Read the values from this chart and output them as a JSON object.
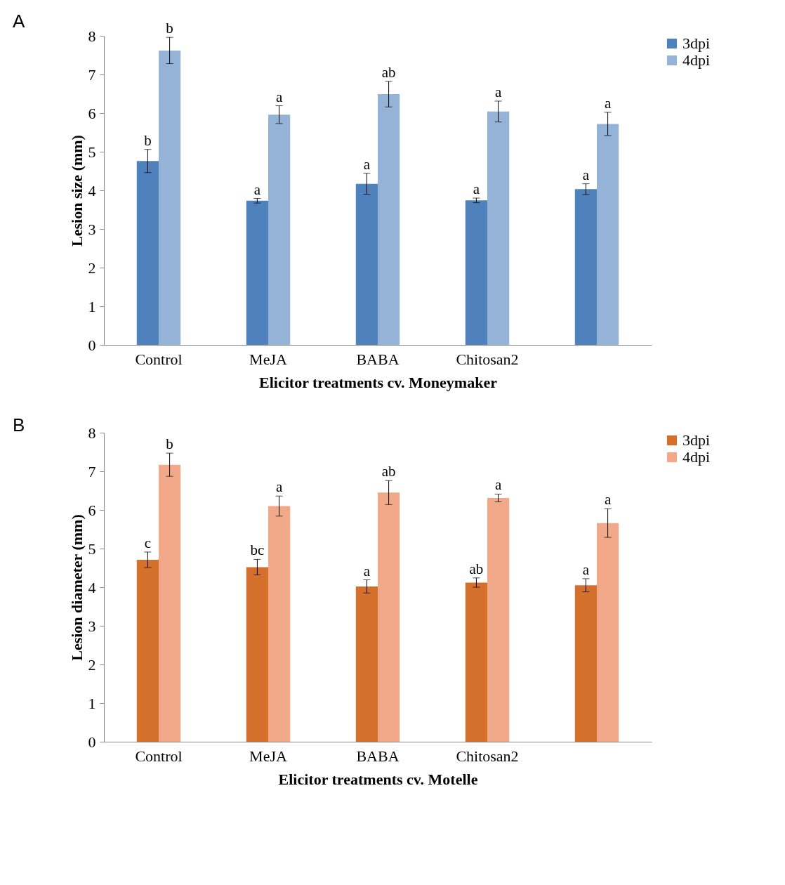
{
  "chart_data": [
    {
      "type": "bar",
      "annotations": [
        "A"
      ],
      "xlabel": "Elicitor treatments  cv. Moneymaker",
      "ylabel": "Lesion size (mm)",
      "categories": [
        "Control",
        "MeJA",
        "BABA",
        "Chitosan2",
        null
      ],
      "ylim": [
        0,
        8
      ],
      "yticks": [
        0,
        1,
        2,
        3,
        4,
        5,
        6,
        7,
        8
      ],
      "legend": "right",
      "grid": false,
      "series": [
        {
          "name": "3dpi",
          "color": "#4f81bd",
          "values": [
            4.76,
            3.73,
            4.17,
            3.74,
            4.03
          ],
          "errors": [
            0.3,
            0.06,
            0.27,
            0.06,
            0.14
          ],
          "value_labels": [
            "b",
            "a",
            "a",
            "a",
            "a"
          ]
        },
        {
          "name": "4dpi",
          "color": "#95b3d7",
          "values": [
            7.62,
            5.96,
            6.49,
            6.04,
            5.72
          ],
          "errors": [
            0.34,
            0.23,
            0.33,
            0.27,
            0.3
          ],
          "value_labels": [
            "b",
            "a",
            "ab",
            "a",
            "a"
          ]
        }
      ]
    },
    {
      "type": "bar",
      "annotations": [
        "B"
      ],
      "xlabel": "Elicitor treatments cv.  Motelle",
      "ylabel": "Lesion diameter (mm)",
      "categories": [
        "Control",
        "MeJA",
        "BABA",
        "Chitosan2",
        null
      ],
      "ylim": [
        0,
        8
      ],
      "yticks": [
        0,
        1,
        2,
        3,
        4,
        5,
        6,
        7,
        8
      ],
      "legend": "right",
      "grid": false,
      "series": [
        {
          "name": "3dpi",
          "color": "#d4702c",
          "values": [
            4.71,
            4.52,
            4.02,
            4.12,
            4.05
          ],
          "errors": [
            0.2,
            0.2,
            0.17,
            0.12,
            0.17
          ],
          "value_labels": [
            "c",
            "bc",
            "a",
            "ab",
            "a"
          ]
        },
        {
          "name": "4dpi",
          "color": "#f2a98a",
          "values": [
            7.17,
            6.1,
            6.45,
            6.31,
            5.66
          ],
          "errors": [
            0.3,
            0.26,
            0.31,
            0.1,
            0.37
          ],
          "value_labels": [
            "b",
            "a",
            "ab",
            "a",
            "a"
          ]
        }
      ]
    }
  ]
}
